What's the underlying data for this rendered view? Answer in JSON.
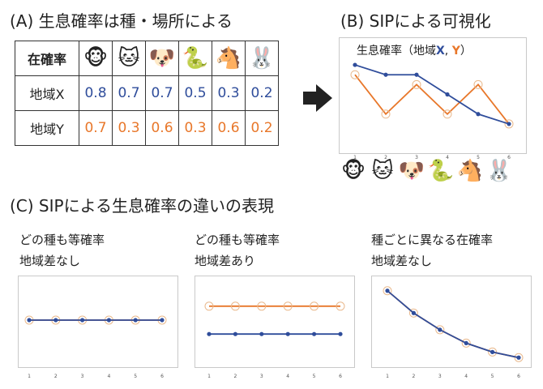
{
  "panelA": {
    "title": "(A) 生息確率は種・場所による",
    "header_label": "在確率",
    "row_x_label": "地域X",
    "row_y_label": "地域Y",
    "species_icons": [
      "🐵",
      "🐱",
      "🐶",
      "🐍",
      "🐴",
      "🐰"
    ],
    "values_x": [
      "0.8",
      "0.7",
      "0.7",
      "0.5",
      "0.3",
      "0.2"
    ],
    "values_y": [
      "0.7",
      "0.3",
      "0.6",
      "0.3",
      "0.6",
      "0.2"
    ]
  },
  "panelB": {
    "title": "(B) SIPによる可視化",
    "chart_title_prefix": "生息確率（地域",
    "chart_title_x": "X",
    "chart_title_sep": ", ",
    "chart_title_y": "Y",
    "chart_title_suffix": "）",
    "icons": [
      "🐵",
      "🐱",
      "🐶",
      "🐍",
      "🐴",
      "🐰"
    ]
  },
  "panelC": {
    "title": "(C) SIPによる生息確率の違いの表現",
    "cases": [
      {
        "line1": "どの種も等確率",
        "line2": "地域差なし"
      },
      {
        "line1": "どの種も等確率",
        "line2": "地域差あり"
      },
      {
        "line1": "種ごとに異なる在確率",
        "line2": "地域差なし"
      }
    ]
  },
  "colors": {
    "region_x": "#2f4d9b",
    "region_y": "#e8772a"
  },
  "chart_data": [
    {
      "type": "line",
      "x": [
        1,
        2,
        3,
        4,
        5,
        6
      ],
      "series": [
        {
          "name": "X",
          "values": [
            0.8,
            0.7,
            0.7,
            0.5,
            0.3,
            0.2
          ]
        },
        {
          "name": "Y",
          "values": [
            0.7,
            0.3,
            0.6,
            0.3,
            0.6,
            0.2
          ]
        }
      ],
      "ylim": [
        0.15,
        0.85
      ]
    },
    {
      "type": "line",
      "x": [
        1,
        2,
        3,
        4,
        5,
        6
      ],
      "series": [
        {
          "values": [
            0.5,
            0.5,
            0.5,
            0.5,
            0.5,
            0.5
          ]
        },
        {
          "values": [
            0.5,
            0.5,
            0.5,
            0.5,
            0.5,
            0.5
          ]
        }
      ],
      "ylim": [
        0,
        1
      ]
    },
    {
      "type": "line",
      "x": [
        1,
        2,
        3,
        4,
        5,
        6
      ],
      "series": [
        {
          "values": [
            0.3,
            0.3,
            0.3,
            0.3,
            0.3,
            0.3
          ]
        },
        {
          "values": [
            0.7,
            0.7,
            0.7,
            0.7,
            0.7,
            0.7
          ]
        }
      ],
      "ylim": [
        0,
        1
      ]
    },
    {
      "type": "line",
      "x": [
        1,
        2,
        3,
        4,
        5,
        6
      ],
      "series": [
        {
          "values": [
            0.8,
            0.6,
            0.45,
            0.33,
            0.25,
            0.2
          ]
        },
        {
          "values": [
            0.8,
            0.6,
            0.45,
            0.33,
            0.25,
            0.2
          ]
        }
      ],
      "ylim": [
        0.1,
        0.9
      ]
    }
  ]
}
